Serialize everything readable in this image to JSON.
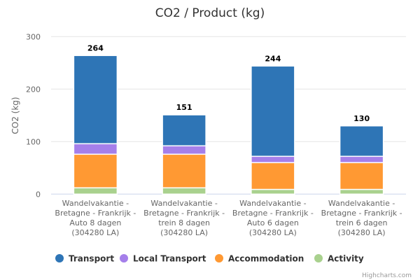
{
  "chart_data": {
    "type": "bar",
    "stacked": true,
    "title": "CO2 / Product (kg)",
    "xlabel": "",
    "ylabel": "CO2 (kg)",
    "ylim": [
      0,
      300
    ],
    "yticks": [
      0,
      100,
      200,
      300
    ],
    "grid": true,
    "legend_placement": "bottom",
    "categories": [
      [
        "Wandelvakantie -",
        "Bretagne - Frankrijk -",
        "Auto 8 dagen",
        "(304280 LA)"
      ],
      [
        "Wandelvakantie -",
        "Bretagne - Frankrijk -",
        "trein 8 dagen",
        "(304280 LA)"
      ],
      [
        "Wandelvakantie -",
        "Bretagne - Frankrijk -",
        "Auto 6 dagen",
        "(304280 LA)"
      ],
      [
        "Wandelvakantie -",
        "Bretagne - Frankrijk -",
        "trein 6 dagen",
        "(304280 LA)"
      ]
    ],
    "totals": [
      264,
      151,
      244,
      130
    ],
    "series": [
      {
        "name": "Transport",
        "color": "#2e75b6",
        "values": [
          168,
          59,
          172,
          58
        ]
      },
      {
        "name": "Local Transport",
        "color": "#a57fea",
        "values": [
          20,
          16,
          12,
          12
        ]
      },
      {
        "name": "Accommodation",
        "color": "#ff9933",
        "values": [
          64,
          64,
          51,
          51
        ]
      },
      {
        "name": "Activity",
        "color": "#a9d18e",
        "values": [
          12,
          12,
          9,
          9
        ]
      }
    ]
  },
  "credits": "Highcharts.com"
}
